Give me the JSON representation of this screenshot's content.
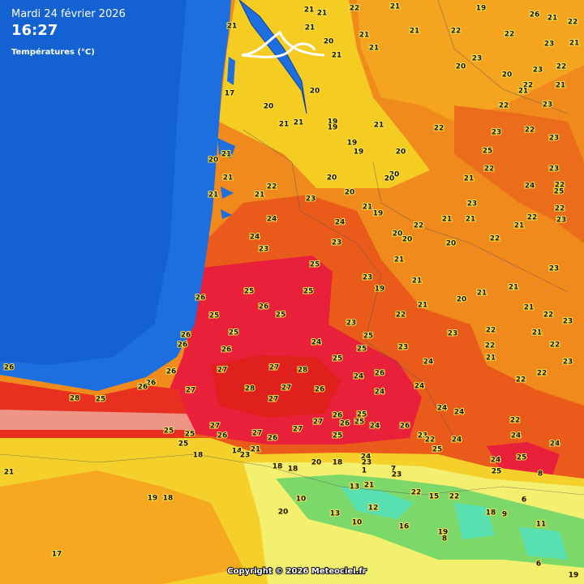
{
  "header": {
    "date": "Mardi 24 février 2026",
    "time": "16:27",
    "subtitle": "Températures (°C)"
  },
  "stations": [
    "21",
    "21",
    "22",
    "21",
    "19",
    "26",
    "21",
    "22",
    "21",
    "21",
    "21",
    "21",
    "22",
    "20",
    "22",
    "21",
    "21",
    "23",
    "21",
    "23",
    "20",
    "23",
    "22",
    "20",
    "22",
    "21",
    "17",
    "20",
    "21",
    "20",
    "23",
    "22",
    "19",
    "19",
    "21",
    "21",
    "21",
    "22",
    "23",
    "22",
    "23",
    "19",
    "19",
    "20",
    "25",
    "20",
    "21",
    "22",
    "23",
    "20",
    "20",
    "20",
    "21",
    "21",
    "21",
    "21",
    "22",
    "20",
    "23",
    "21",
    "24",
    "22",
    "25",
    "22",
    "23",
    "21",
    "19",
    "23",
    "22",
    "21",
    "22",
    "24",
    "24",
    "21",
    "24",
    "20",
    "20",
    "20",
    "22",
    "23",
    "23",
    "21",
    "25",
    "23",
    "23",
    "21",
    "19",
    "21",
    "25",
    "25",
    "21",
    "20",
    "26",
    "26",
    "25",
    "21",
    "21",
    "22",
    "22",
    "25",
    "23",
    "23",
    "23",
    "21",
    "26",
    "25",
    "25",
    "22",
    "24",
    "25",
    "23",
    "22",
    "22",
    "26",
    "26",
    "21",
    "25",
    "24",
    "23",
    "27",
    "28",
    "26",
    "26",
    "27",
    "24",
    "22",
    "22",
    "26",
    "26",
    "26",
    "28",
    "27",
    "26",
    "24",
    "24",
    "27",
    "28",
    "25",
    "27",
    "24",
    "24",
    "26",
    "25",
    "26",
    "25",
    "24",
    "22",
    "26",
    "27",
    "27",
    "27",
    "25",
    "25",
    "26",
    "27",
    "26",
    "25",
    "23",
    "22",
    "24",
    "24",
    "24",
    "25",
    "14",
    "21",
    "23",
    "18",
    "24",
    "23",
    "25",
    "24",
    "25",
    "8",
    "18",
    "18",
    "20",
    "18",
    "1",
    "7",
    "23",
    "25",
    "21",
    "21",
    "13",
    "22",
    "15",
    "22",
    "6",
    "10",
    "19",
    "18",
    "13",
    "20",
    "12",
    "18",
    "9",
    "10",
    "16",
    "11",
    "19",
    "8",
    "17",
    "6",
    "19"
  ],
  "footer": {
    "copyright": "Copyright © 2026 Meteociel.fr"
  }
}
